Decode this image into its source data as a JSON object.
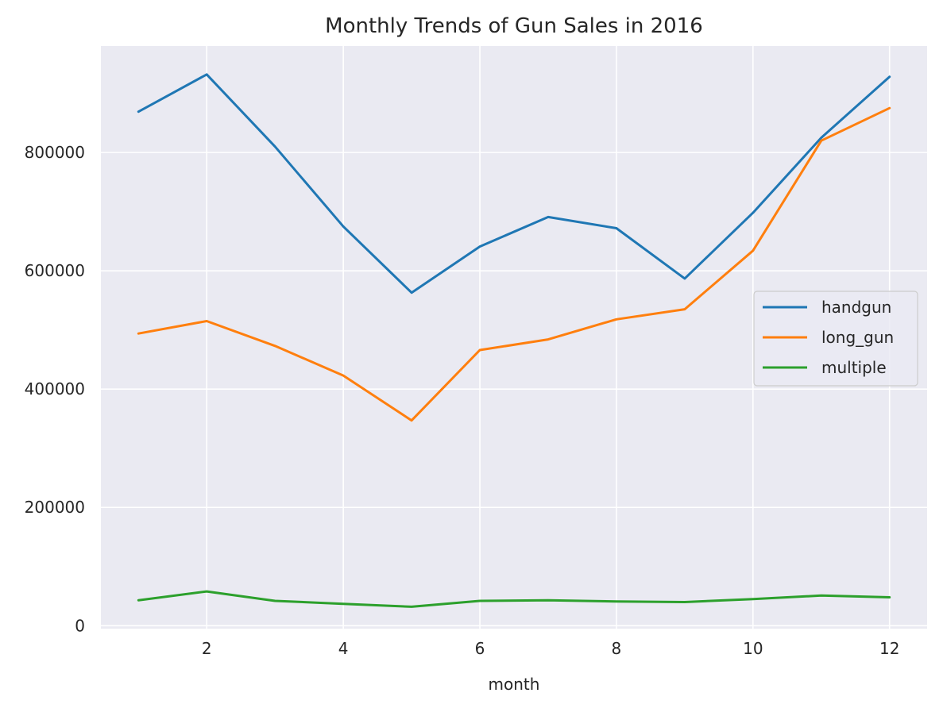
{
  "chart_data": {
    "type": "line",
    "title": "Monthly Trends of Gun Sales in 2016",
    "xlabel": "month",
    "ylabel": "",
    "x": [
      1,
      2,
      3,
      4,
      5,
      6,
      7,
      8,
      9,
      10,
      11,
      12
    ],
    "xticks": [
      2,
      4,
      6,
      8,
      10,
      12
    ],
    "yticks": [
      0,
      200000,
      400000,
      600000,
      800000
    ],
    "xlim": [
      0.45,
      12.55
    ],
    "ylim": [
      -5000,
      980000
    ],
    "grid": true,
    "legend_position": "center-right",
    "background_color": "#eaeaf2",
    "grid_color": "#ffffff",
    "series": [
      {
        "name": "handgun",
        "color": "#1f77b4",
        "values": [
          869000,
          932000,
          810000,
          675000,
          563000,
          641000,
          691000,
          672000,
          587000,
          698000,
          825000,
          928000
        ]
      },
      {
        "name": "long_gun",
        "color": "#ff7f0e",
        "values": [
          494000,
          515000,
          473000,
          423000,
          347000,
          466000,
          484000,
          518000,
          535000,
          634000,
          820000,
          875000
        ]
      },
      {
        "name": "multiple",
        "color": "#2ca02c",
        "values": [
          43000,
          58000,
          42000,
          37000,
          32000,
          42000,
          43000,
          41000,
          40000,
          45000,
          51000,
          48000
        ]
      }
    ]
  }
}
